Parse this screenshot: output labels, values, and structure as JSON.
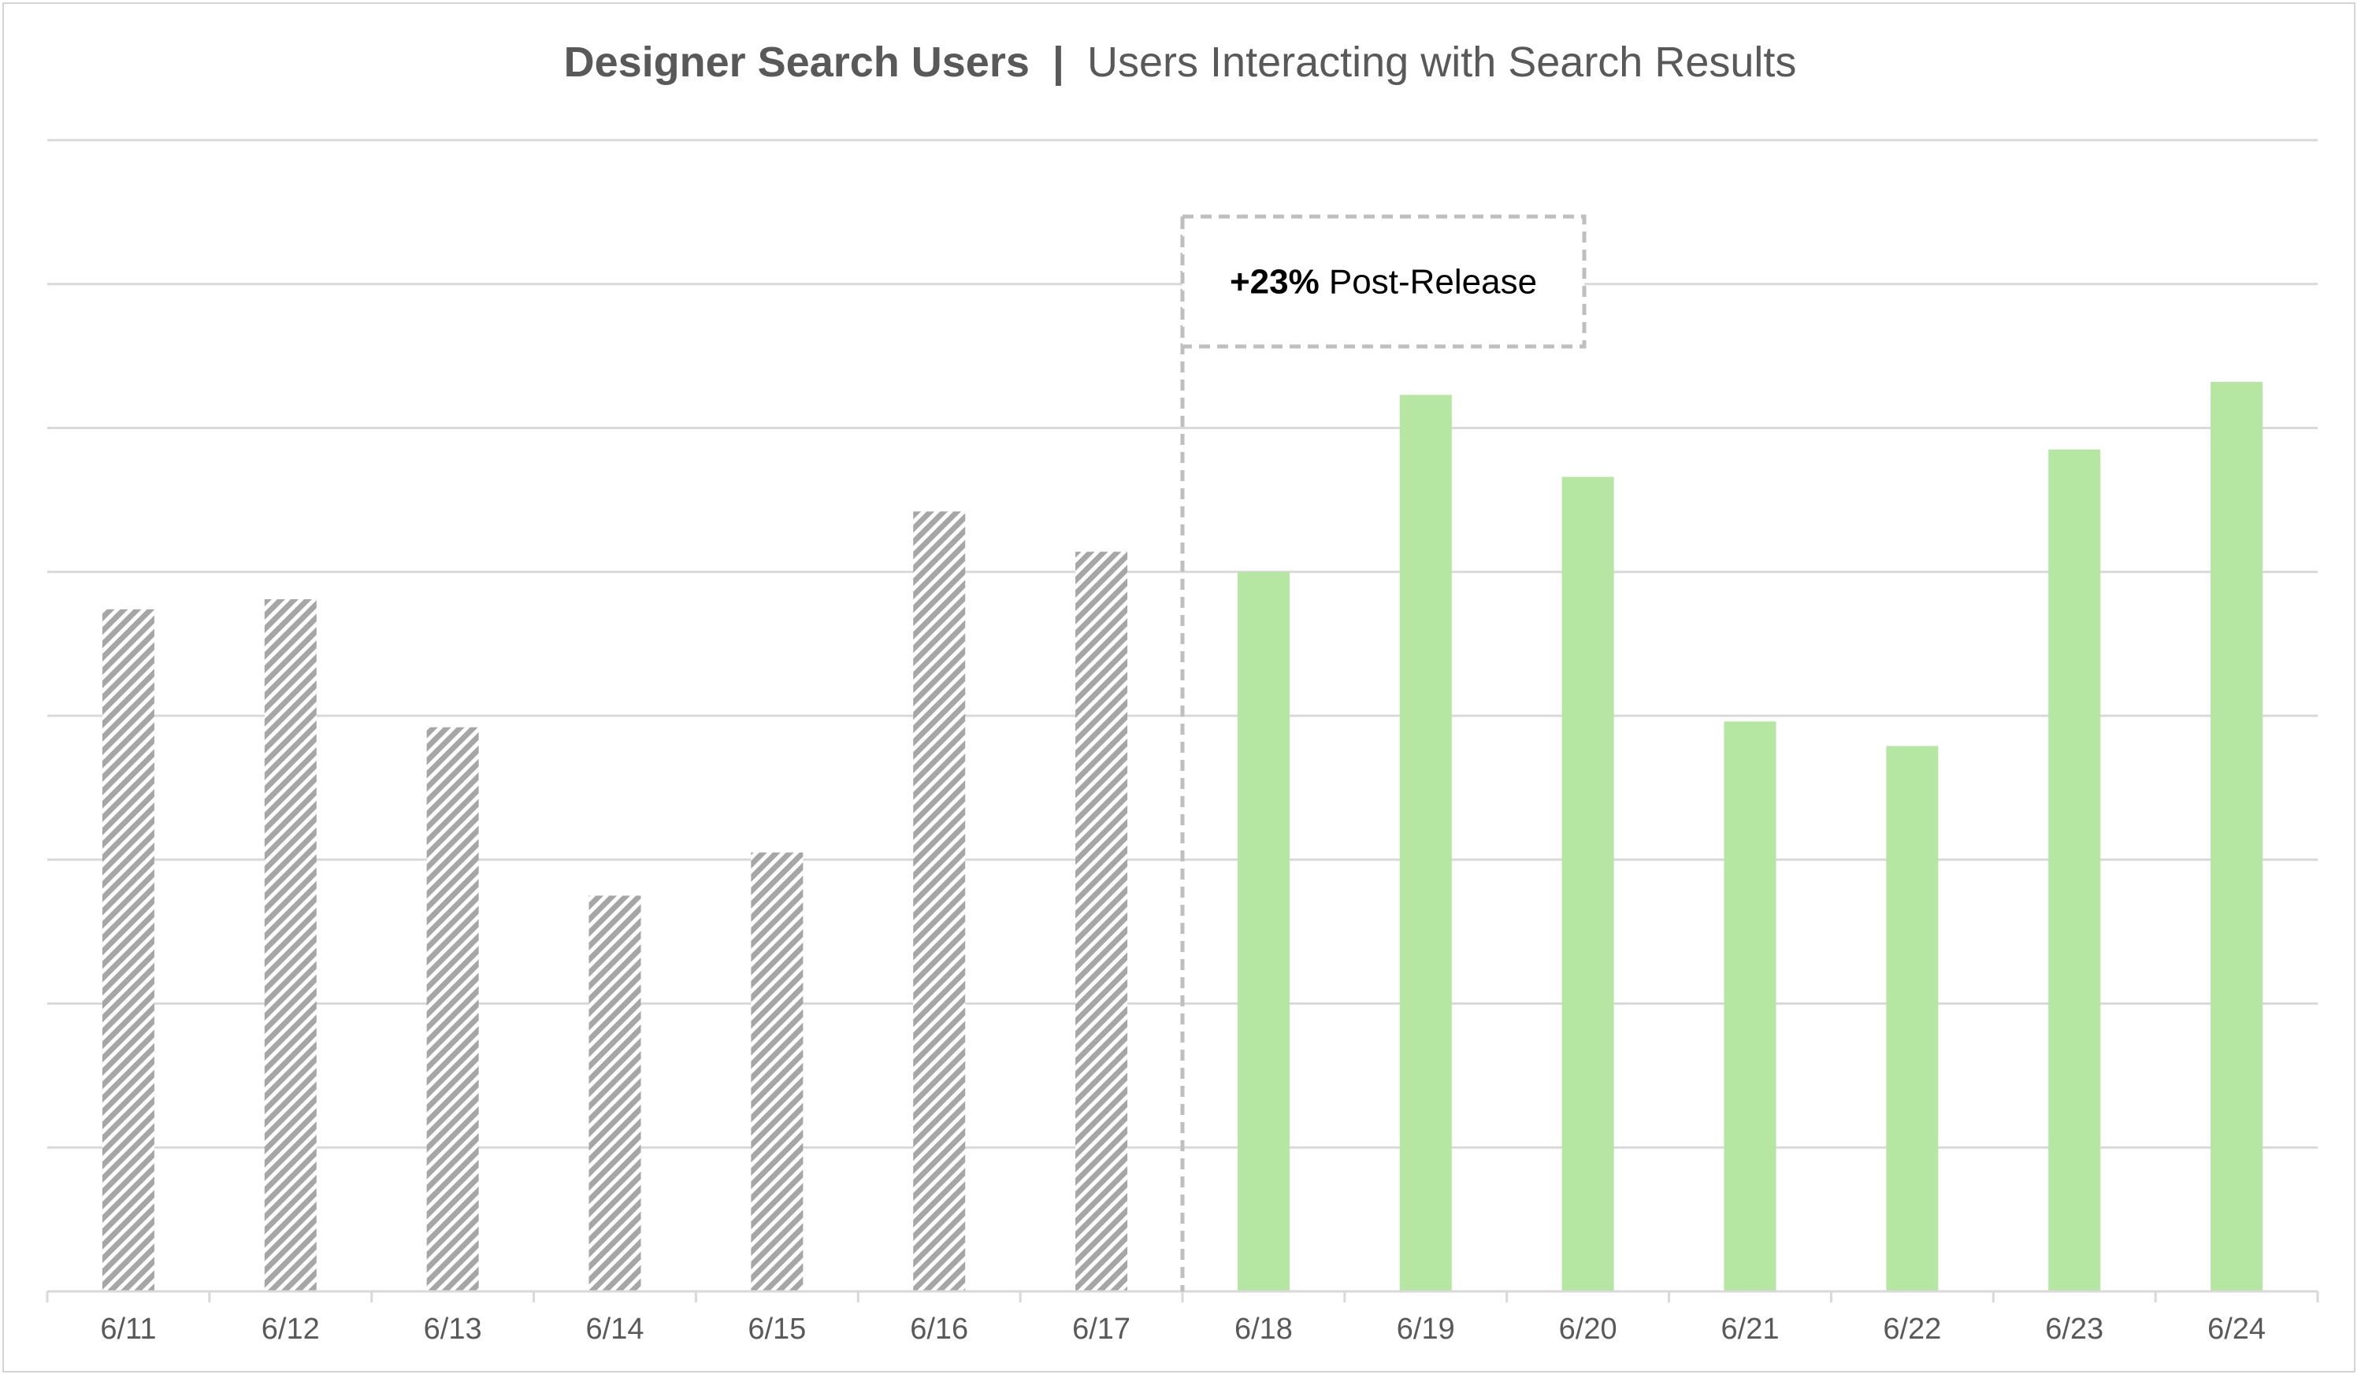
{
  "chart_data": {
    "type": "bar",
    "title": "Designer Search Users",
    "subtitle": "Users Interacting with Search Results",
    "xlabel": "",
    "ylabel": "",
    "categories": [
      "6/11",
      "6/12",
      "6/13",
      "6/14",
      "6/15",
      "6/16",
      "6/17",
      "6/18",
      "6/19",
      "6/20",
      "6/21",
      "6/22",
      "6/23",
      "6/24"
    ],
    "series": [
      {
        "values": [
          4.74,
          4.81,
          3.92,
          2.75,
          3.05,
          5.42,
          5.14,
          5.0,
          6.23,
          5.66,
          3.96,
          3.79,
          5.85,
          6.32
        ],
        "colors": [
          "#a6a6a6",
          "#a6a6a6",
          "#a6a6a6",
          "#a6a6a6",
          "#a6a6a6",
          "#a6a6a6",
          "#a6a6a6",
          "#b5e6a2",
          "#b5e6a2",
          "#b5e6a2",
          "#b5e6a2",
          "#b5e6a2",
          "#b5e6a2",
          "#b5e6a2"
        ],
        "patterns": [
          "hatched",
          "hatched",
          "hatched",
          "hatched",
          "hatched",
          "hatched",
          "hatched",
          "solid",
          "solid",
          "solid",
          "solid",
          "solid",
          "solid",
          "solid"
        ]
      }
    ],
    "ylim": [
      0,
      8
    ],
    "y_ticks": [
      0,
      1,
      2,
      3,
      4,
      5,
      6,
      7,
      8
    ],
    "y_tick_labels_visible": false,
    "grid": true,
    "legend": "none",
    "annotation": {
      "bold": "+23%",
      "text": " Post-Release",
      "divider_after_category": "6/17"
    },
    "colors": {
      "pre_release": "#a6a6a6",
      "post_release": "#b5e6a2",
      "grid": "#d9d9d9",
      "title": "#595959",
      "axis_text": "#595959",
      "annotation_border": "#bfbfbf"
    }
  }
}
